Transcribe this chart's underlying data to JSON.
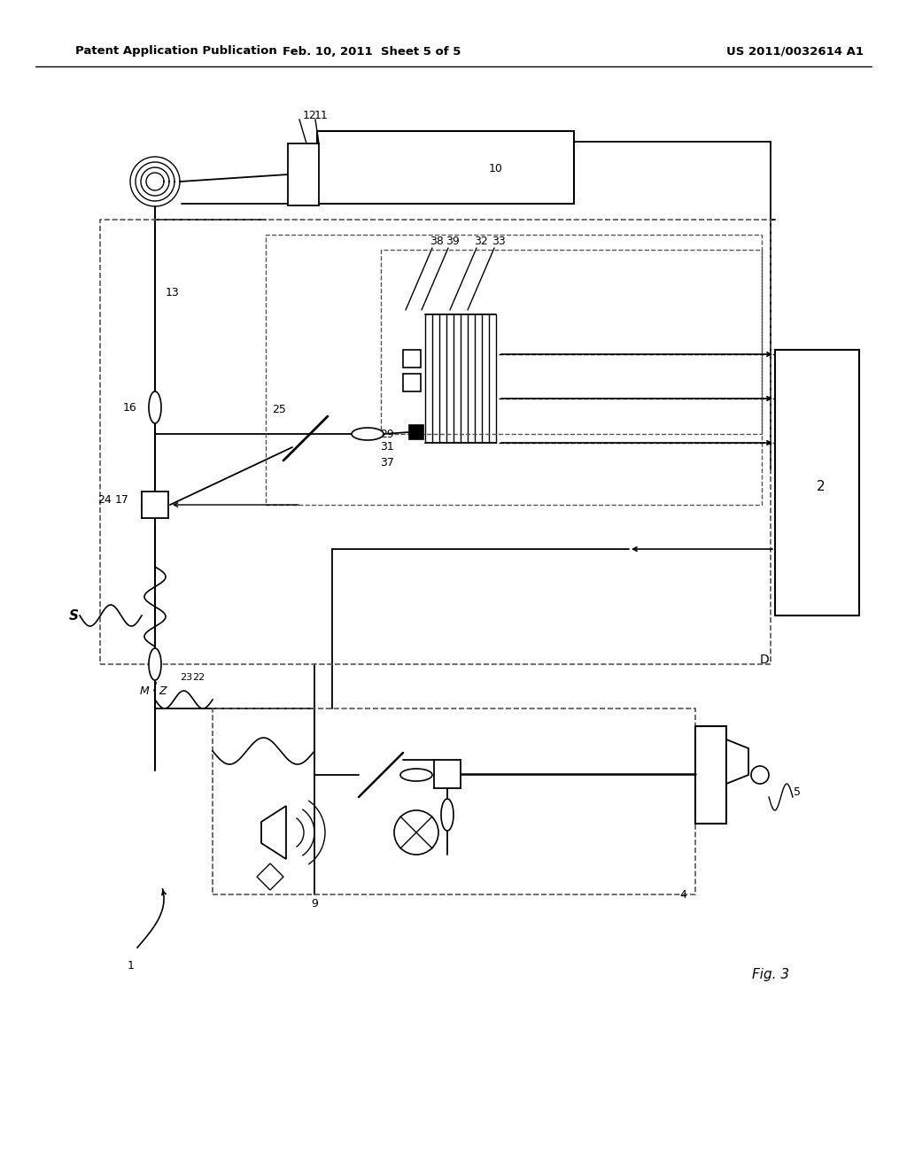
{
  "bg_color": "#ffffff",
  "lc": "#000000",
  "header_left": "Patent Application Publication",
  "header_mid": "Feb. 10, 2011  Sheet 5 of 5",
  "header_right": "US 2011/0032614 A1",
  "fig_label": "Fig. 3"
}
